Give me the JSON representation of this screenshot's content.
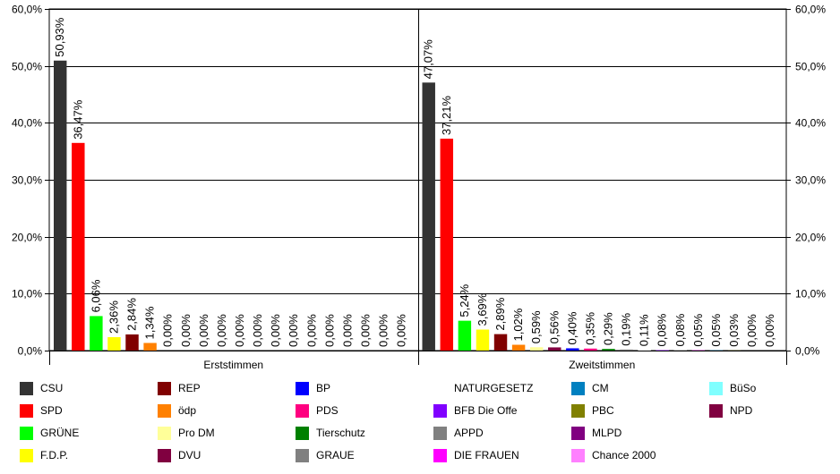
{
  "chart_data": {
    "type": "bar",
    "categories": [
      "Erststimmen",
      "Zweitstimmen"
    ],
    "ylim": [
      0,
      60
    ],
    "yticks": [
      "0,0%",
      "10,0%",
      "20,0%",
      "30,0%",
      "40,0%",
      "50,0%",
      "60,0%"
    ],
    "ytick_values": [
      0,
      10,
      20,
      30,
      40,
      50,
      60
    ],
    "grid": true,
    "legend_position": "bottom",
    "series": [
      {
        "name": "CSU",
        "color": "#333333",
        "values": [
          50.93,
          47.07
        ],
        "labels": [
          "50,93%",
          "47,07%"
        ]
      },
      {
        "name": "SPD",
        "color": "#ff0000",
        "values": [
          36.47,
          37.21
        ],
        "labels": [
          "36,47%",
          "37,21%"
        ]
      },
      {
        "name": "GRÜNE",
        "color": "#00ff00",
        "values": [
          6.06,
          5.24
        ],
        "labels": [
          "6,06%",
          "5,24%"
        ]
      },
      {
        "name": "F.D.P.",
        "color": "#ffff00",
        "values": [
          2.36,
          3.69
        ],
        "labels": [
          "2,36%",
          "3,69%"
        ]
      },
      {
        "name": "REP",
        "color": "#800000",
        "values": [
          2.84,
          2.89
        ],
        "labels": [
          "2,84%",
          "2,89%"
        ]
      },
      {
        "name": "ödp",
        "color": "#ff8000",
        "values": [
          1.34,
          1.02
        ],
        "labels": [
          "1,34%",
          "1,02%"
        ]
      },
      {
        "name": "Pro DM",
        "color": "#ffff99",
        "values": [
          0.0,
          0.59
        ],
        "labels": [
          "0,00%",
          "0,59%"
        ]
      },
      {
        "name": "DVU",
        "color": "#800040",
        "values": [
          0.0,
          0.56
        ],
        "labels": [
          "0,00%",
          "0,56%"
        ]
      },
      {
        "name": "BP",
        "color": "#0000ff",
        "values": [
          0.0,
          0.4
        ],
        "labels": [
          "0,00%",
          "0,40%"
        ]
      },
      {
        "name": "PDS",
        "color": "#ff0080",
        "values": [
          0.0,
          0.35
        ],
        "labels": [
          "0,00%",
          "0,35%"
        ]
      },
      {
        "name": "Tierschutz",
        "color": "#008000",
        "values": [
          0.0,
          0.29
        ],
        "labels": [
          "0,00%",
          "0,29%"
        ]
      },
      {
        "name": "GRAUE",
        "color": "#808080",
        "values": [
          0.0,
          0.19
        ],
        "labels": [
          "0,00%",
          "0,19%"
        ]
      },
      {
        "name": "NATURGESETZ",
        "color": "#ffffff",
        "values": [
          0.0,
          0.11
        ],
        "labels": [
          "0,00%",
          "0,11%"
        ]
      },
      {
        "name": "BFB Die Offe",
        "color": "#8000ff",
        "values": [
          0.0,
          0.08
        ],
        "labels": [
          "0,00%",
          "0,08%"
        ]
      },
      {
        "name": "APPD",
        "color": "#808080",
        "values": [
          0.0,
          0.08
        ],
        "labels": [
          "0,00%",
          "0,08%"
        ]
      },
      {
        "name": "DIE FRAUEN",
        "color": "#ff00ff",
        "values": [
          0.0,
          0.05
        ],
        "labels": [
          "0,00%",
          "0,05%"
        ]
      },
      {
        "name": "CM",
        "color": "#0080c0",
        "values": [
          0.0,
          0.05
        ],
        "labels": [
          "0,00%",
          "0,05%"
        ]
      },
      {
        "name": "PBC",
        "color": "#808000",
        "values": [
          0.0,
          0.03
        ],
        "labels": [
          "0,00%",
          "0,03%"
        ]
      },
      {
        "name": "MLPD",
        "color": "#800080",
        "values": [
          0.0,
          0.0
        ],
        "labels": [
          "0,00%",
          "0,00%"
        ]
      },
      {
        "name": "Chance 2000",
        "color": "#ff80ff",
        "values": [
          0.0,
          0.0
        ],
        "labels": [
          "0,00%",
          "0,00%"
        ]
      }
    ],
    "legend_extra": [
      {
        "name": "BüSo",
        "color": "#80ffff"
      },
      {
        "name": "NPD",
        "color": "#800040"
      }
    ]
  }
}
